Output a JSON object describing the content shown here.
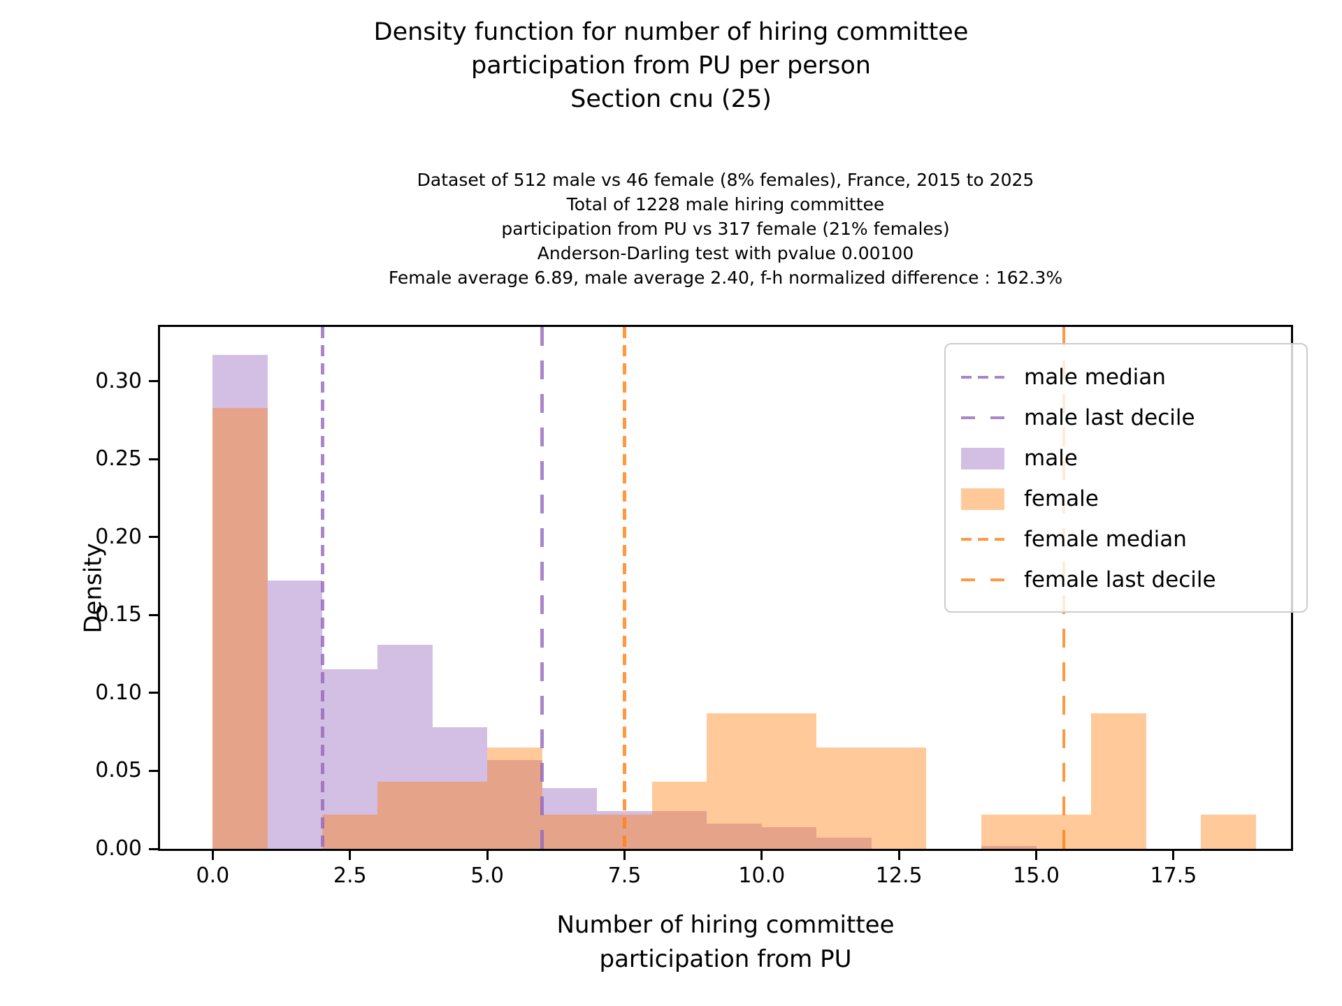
{
  "title": {
    "line1": "Density function for number of hiring committee",
    "line2": "participation from PU per person",
    "line3": "Section cnu (25)"
  },
  "subtitle": {
    "line1": "Dataset of 512 male vs 46 female (8% females), France, 2015 to 2025",
    "line2": "Total of 1228 male hiring committee",
    "line3": "participation from PU vs 317 female (21% females)",
    "line4": "Anderson-Darling test with pvalue 0.00100",
    "line5": "Female average 6.89, male average 2.40, f-h normalized difference : 162.3%"
  },
  "chart_data": {
    "type": "histogram",
    "title": "Density function for number of hiring committee participation from PU per person Section cnu (25)",
    "xlabel_line1": "Number of hiring committee",
    "xlabel_line2": "participation from PU",
    "ylabel": "Density",
    "x_tick_labels": [
      "0.0",
      "2.5",
      "5.0",
      "7.5",
      "10.0",
      "12.5",
      "15.0",
      "17.5"
    ],
    "x_tick_values": [
      0,
      2.5,
      5,
      7.5,
      10,
      12.5,
      15,
      17.5
    ],
    "y_tick_labels": [
      "0.00",
      "0.05",
      "0.10",
      "0.15",
      "0.20",
      "0.25",
      "0.30"
    ],
    "y_tick_values": [
      0,
      0.05,
      0.1,
      0.15,
      0.2,
      0.25,
      0.3
    ],
    "xlim": [
      -0.96,
      19.64
    ],
    "ylim": [
      0,
      0.3348
    ],
    "grid": false,
    "bins": {
      "start": 0,
      "width": 1,
      "count": 19
    },
    "series": [
      {
        "name": "male",
        "base_color": "#9467bd",
        "fill_rgba": "rgba(148,103,189,0.42)",
        "densities": [
          0.317,
          0.172,
          0.115,
          0.131,
          0.078,
          0.057,
          0.039,
          0.024,
          0.024,
          0.016,
          0.014,
          0.007,
          0,
          0,
          0.002,
          0,
          0,
          0,
          0
        ]
      },
      {
        "name": "female",
        "base_color": "#ff7f0e",
        "fill_rgba": "rgba(255,127,14,0.42)",
        "densities": [
          0.283,
          0,
          0.022,
          0.043,
          0.043,
          0.065,
          0.022,
          0.022,
          0.043,
          0.087,
          0.087,
          0.065,
          0.065,
          0,
          0.022,
          0.022,
          0.087,
          0,
          0.022
        ]
      }
    ],
    "vlines": [
      {
        "name": "male-median",
        "label": "male median",
        "x": 2.0,
        "rgba": "rgba(148,103,189,0.8)",
        "dash": [
          16,
          10
        ]
      },
      {
        "name": "male-last-decile",
        "label": "male last decile",
        "x": 6.0,
        "rgba": "rgba(148,103,189,0.8)",
        "dash": [
          27,
          21
        ]
      },
      {
        "name": "female-median",
        "label": "female median",
        "x": 7.5,
        "rgba": "rgba(255,127,14,0.8)",
        "dash": [
          16,
          10
        ]
      },
      {
        "name": "female-last-decile",
        "label": "female last decile",
        "x": 15.5,
        "rgba": "rgba(255,127,14,0.8)",
        "dash": [
          27,
          21
        ]
      }
    ],
    "legend": {
      "position": "upper right",
      "entries": [
        {
          "label": "male median",
          "handle": "dash-short",
          "rgba": "rgba(148,103,189,0.8)",
          "dash": [
            15,
            9
          ]
        },
        {
          "label": "male last decile",
          "handle": "dash-long",
          "rgba": "rgba(148,103,189,0.8)",
          "dash": [
            20,
            22
          ]
        },
        {
          "label": "male",
          "handle": "patch",
          "rgba": "rgba(148,103,189,0.42)"
        },
        {
          "label": "female",
          "handle": "patch",
          "rgba": "rgba(255,127,14,0.42)"
        },
        {
          "label": "female median",
          "handle": "dash-short",
          "rgba": "rgba(255,127,14,0.8)",
          "dash": [
            15,
            9
          ]
        },
        {
          "label": "female last decile",
          "handle": "dash-long",
          "rgba": "rgba(255,127,14,0.8)",
          "dash": [
            20,
            22
          ]
        }
      ]
    }
  }
}
